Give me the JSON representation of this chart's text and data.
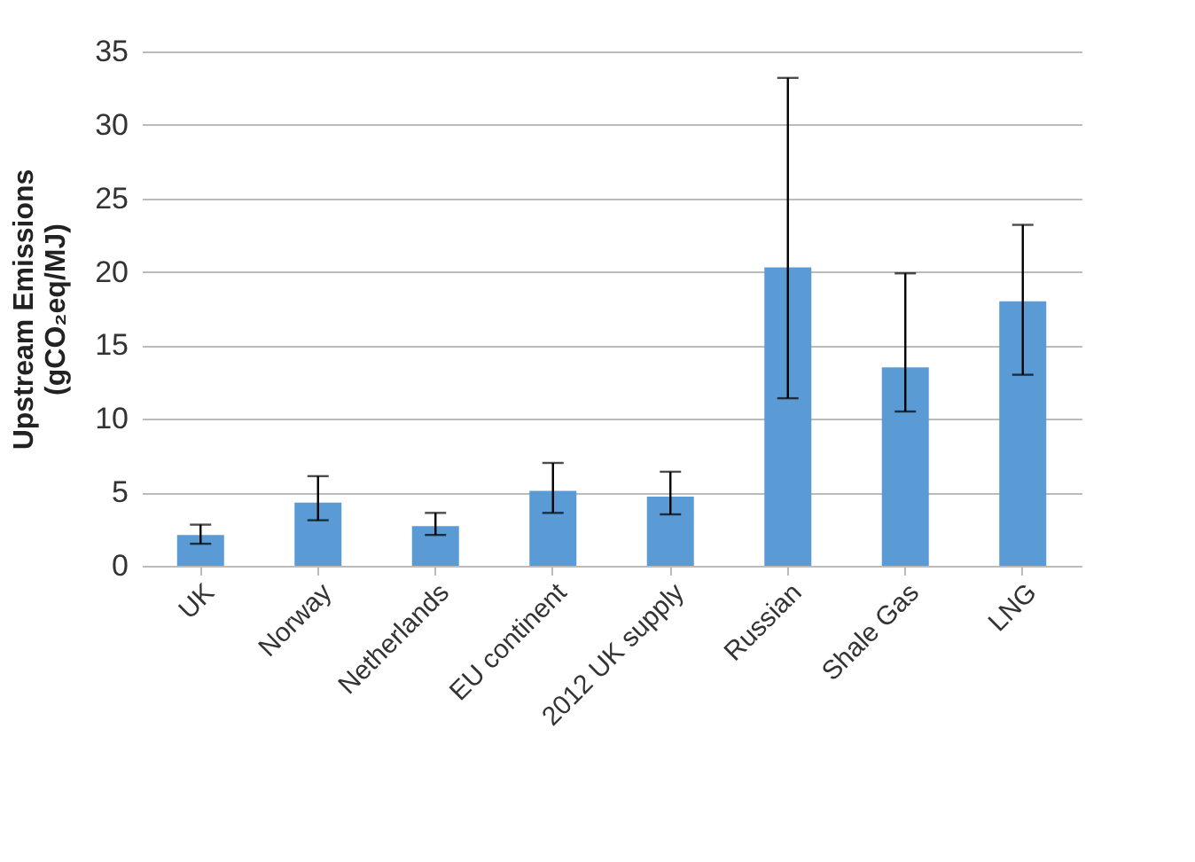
{
  "chart_data": {
    "type": "bar",
    "ylabel": "Upstream Emissions\n(gCO₂eq/MJ)",
    "categories": [
      "UK",
      "Norway",
      "Netherlands",
      "EU continent",
      "2012 UK supply",
      "Russian",
      "Shale Gas",
      "LNG"
    ],
    "values": [
      2.1,
      4.3,
      2.7,
      5.1,
      4.7,
      20.3,
      13.5,
      18.0
    ],
    "errors": [
      [
        1.5,
        2.8
      ],
      [
        3.1,
        6.1
      ],
      [
        2.1,
        3.6
      ],
      [
        3.6,
        7.0
      ],
      [
        3.5,
        6.4
      ],
      [
        11.4,
        33.2
      ],
      [
        10.5,
        19.9
      ],
      [
        13.0,
        23.2
      ]
    ],
    "color": "#5b9bd5",
    "ylim": [
      0,
      35
    ],
    "yticks": [
      0,
      5,
      10,
      15,
      20,
      25,
      30,
      35
    ],
    "grid": "y"
  }
}
